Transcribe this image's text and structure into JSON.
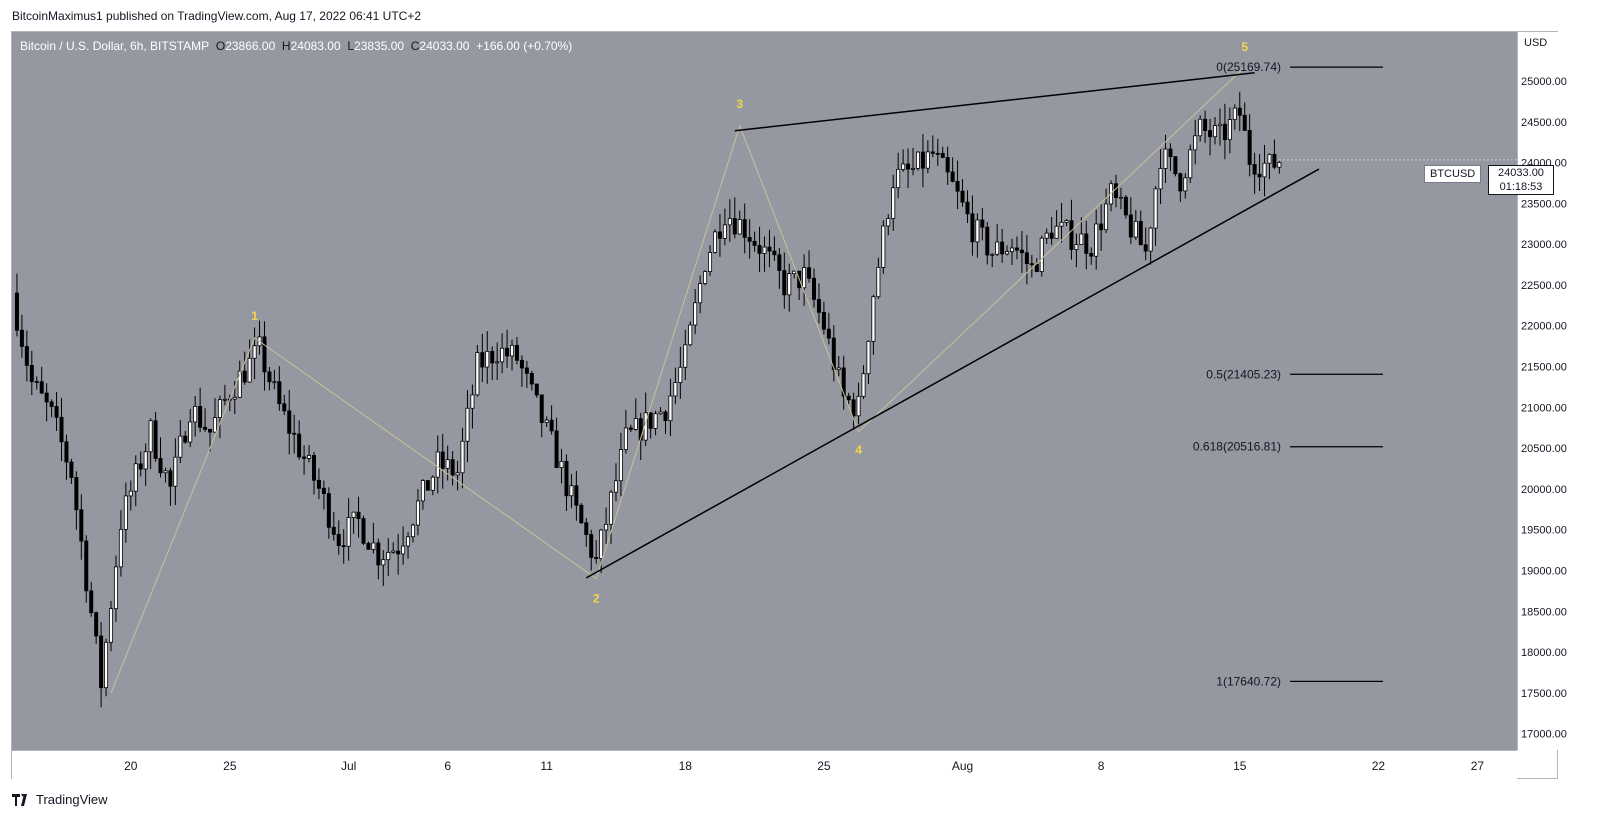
{
  "header": {
    "published": "BitcoinMaximus1 published on TradingView.com, Aug 17, 2022 06:41 UTC+2"
  },
  "legend": {
    "symbol": "Bitcoin / U.S. Dollar, 6h, BITSTAMP",
    "o_label": "O",
    "o_value": "23866.00",
    "h_label": "H",
    "h_value": "24083.00",
    "l_label": "L",
    "l_value": "23835.00",
    "c_label": "C",
    "c_value": "24033.00",
    "change": "+166.00 (+0.70%)"
  },
  "price_axis": {
    "currency": "USD"
  },
  "last_price": {
    "symbol": "BTCUSD",
    "price": "24033.00",
    "countdown": "01:18:53"
  },
  "footer": {
    "brand": "TradingView"
  },
  "colors": {
    "background": "#9598a1",
    "wave_label": "#f5d64a",
    "wave_line": "#c8c19a",
    "line": "#000000"
  },
  "chart_data": {
    "type": "candlestick",
    "title": "Bitcoin / U.S. Dollar, 6h, BITSTAMP",
    "ylabel": "USD",
    "ylim": [
      16800,
      25600
    ],
    "y_ticks": [
      17000,
      17500,
      18000,
      18500,
      19000,
      19500,
      20000,
      20500,
      21000,
      21500,
      22000,
      22500,
      23000,
      23500,
      24000,
      24500,
      25000
    ],
    "y_tick_labels": [
      "17000.00",
      "17500.00",
      "18000.00",
      "18500.00",
      "19000.00",
      "19500.00",
      "20000.00",
      "20500.00",
      "21000.00",
      "21500.00",
      "22000.00",
      "22500.00",
      "23000.00",
      "23500.00",
      "24000.00",
      "24500.00",
      "25000.00"
    ],
    "xlim": [
      "2022-06-14",
      "2022-08-29"
    ],
    "x_ticks": [
      {
        "date": "2022-06-20",
        "label": "20"
      },
      {
        "date": "2022-06-25",
        "label": "25"
      },
      {
        "date": "2022-07-01",
        "label": "Jul"
      },
      {
        "date": "2022-07-06",
        "label": "6"
      },
      {
        "date": "2022-07-11",
        "label": "11"
      },
      {
        "date": "2022-07-18",
        "label": "18"
      },
      {
        "date": "2022-07-25",
        "label": "25"
      },
      {
        "date": "2022-08-01",
        "label": "Aug"
      },
      {
        "date": "2022-08-08",
        "label": "8"
      },
      {
        "date": "2022-08-15",
        "label": "15"
      },
      {
        "date": "2022-08-22",
        "label": "22"
      },
      {
        "date": "2022-08-27",
        "label": "27"
      }
    ],
    "price_path": [
      [
        "2022-06-14T00:00",
        22400
      ],
      [
        "2022-06-15T00:00",
        21300
      ],
      [
        "2022-06-16T00:00",
        20900
      ],
      [
        "2022-06-17T00:00",
        20200
      ],
      [
        "2022-06-18T12:00",
        17620
      ],
      [
        "2022-06-19T12:00",
        19600
      ],
      [
        "2022-06-21T00:00",
        20700
      ],
      [
        "2022-06-22T00:00",
        20000
      ],
      [
        "2022-06-23T00:00",
        21000
      ],
      [
        "2022-06-24T00:00",
        20700
      ],
      [
        "2022-06-25T00:00",
        21200
      ],
      [
        "2022-06-26T12:00",
        21700
      ],
      [
        "2022-06-27T12:00",
        21000
      ],
      [
        "2022-06-28T12:00",
        20500
      ],
      [
        "2022-06-29T12:00",
        20000
      ],
      [
        "2022-06-30T12:00",
        19400
      ],
      [
        "2022-07-01T12:00",
        19600
      ],
      [
        "2022-07-02T12:00",
        19200
      ],
      [
        "2022-07-03T12:00",
        19300
      ],
      [
        "2022-07-04T12:00",
        19800
      ],
      [
        "2022-07-05T12:00",
        20300
      ],
      [
        "2022-07-06T12:00",
        20200
      ],
      [
        "2022-07-07T12:00",
        21500
      ],
      [
        "2022-07-08T12:00",
        21700
      ],
      [
        "2022-07-09T12:00",
        21600
      ],
      [
        "2022-07-10T12:00",
        21000
      ],
      [
        "2022-07-11T12:00",
        20400
      ],
      [
        "2022-07-12T12:00",
        19700
      ],
      [
        "2022-07-13T12:00",
        19100
      ],
      [
        "2022-07-14T00:00",
        19600
      ],
      [
        "2022-07-15T00:00",
        20600
      ],
      [
        "2022-07-16T00:00",
        20800
      ],
      [
        "2022-07-17T00:00",
        21000
      ],
      [
        "2022-07-18T00:00",
        21600
      ],
      [
        "2022-07-19T00:00",
        22800
      ],
      [
        "2022-07-20T00:00",
        23400
      ],
      [
        "2022-07-21T00:00",
        23200
      ],
      [
        "2022-07-22T00:00",
        22900
      ],
      [
        "2022-07-23T00:00",
        22500
      ],
      [
        "2022-07-24T00:00",
        22600
      ],
      [
        "2022-07-25T00:00",
        22000
      ],
      [
        "2022-07-26T00:00",
        21100
      ],
      [
        "2022-07-26T18:00",
        21000
      ],
      [
        "2022-07-27T12:00",
        22400
      ],
      [
        "2022-07-28T12:00",
        23800
      ],
      [
        "2022-07-29T12:00",
        23900
      ],
      [
        "2022-07-30T12:00",
        24100
      ],
      [
        "2022-07-31T12:00",
        23700
      ],
      [
        "2022-08-01T12:00",
        23200
      ],
      [
        "2022-08-02T12:00",
        22900
      ],
      [
        "2022-08-03T12:00",
        23000
      ],
      [
        "2022-08-04T12:00",
        22700
      ],
      [
        "2022-08-05T12:00",
        23200
      ],
      [
        "2022-08-06T12:00",
        23100
      ],
      [
        "2022-08-07T12:00",
        23000
      ],
      [
        "2022-08-08T12:00",
        23600
      ],
      [
        "2022-08-09T12:00",
        23200
      ],
      [
        "2022-08-10T06:00",
        22900
      ],
      [
        "2022-08-11T00:00",
        24100
      ],
      [
        "2022-08-12T00:00",
        23800
      ],
      [
        "2022-08-13T00:00",
        24400
      ],
      [
        "2022-08-14T00:00",
        24300
      ],
      [
        "2022-08-15T00:00",
        24600
      ],
      [
        "2022-08-15T12:00",
        24050
      ],
      [
        "2022-08-16T12:00",
        23950
      ],
      [
        "2022-08-17T00:00",
        24033
      ]
    ],
    "wave_labels": [
      {
        "label": "1",
        "date": "2022-06-26T06:00",
        "price": 21850
      },
      {
        "label": "2",
        "date": "2022-07-13T12:00",
        "price": 18900
      },
      {
        "label": "3",
        "date": "2022-07-20T18:00",
        "price": 24450
      },
      {
        "label": "4",
        "date": "2022-07-26T18:00",
        "price": 20700
      },
      {
        "label": "5",
        "date": "2022-08-15T06:00",
        "price": 25170
      }
    ],
    "wedge_upper": [
      [
        "2022-07-20T12:00",
        24390
      ],
      [
        "2022-08-15T18:00",
        25100
      ]
    ],
    "wedge_lower": [
      [
        "2022-07-13T00:00",
        18910
      ],
      [
        "2022-08-19T00:00",
        23920
      ]
    ],
    "fib_levels": [
      {
        "ratio": "0",
        "price": 25169.74,
        "label": "0(25169.74)"
      },
      {
        "ratio": "0.5",
        "price": 21405.23,
        "label": "0.5(21405.23)"
      },
      {
        "ratio": "0.618",
        "price": 20516.81,
        "label": "0.618(20516.81)"
      },
      {
        "ratio": "1",
        "price": 17640.72,
        "label": "1(17640.72)"
      }
    ],
    "last_price": 24033.0
  }
}
